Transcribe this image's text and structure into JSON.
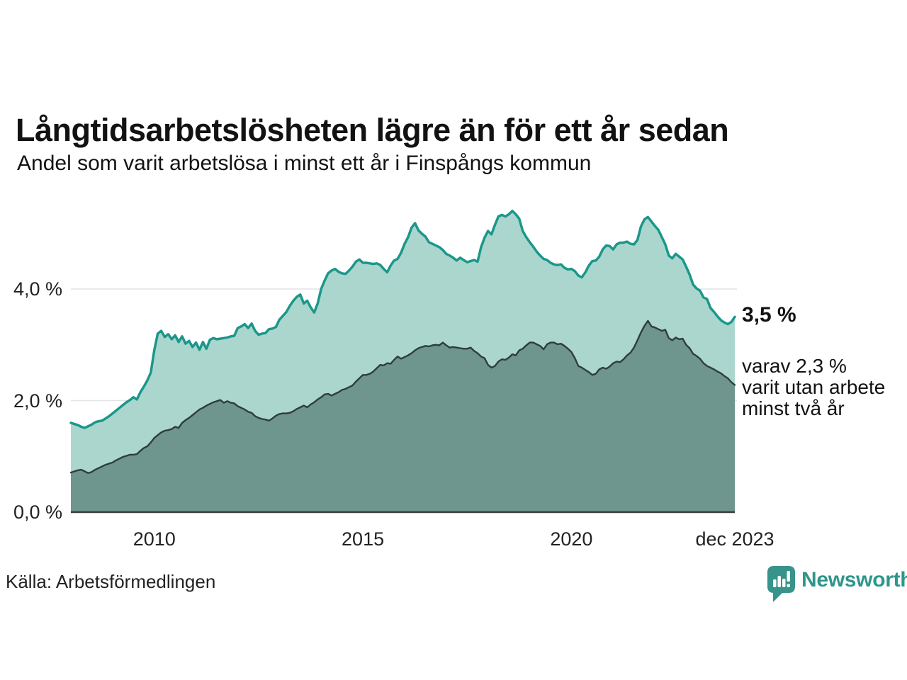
{
  "header": {
    "title": "Långtidsarbetslösheten lägre än för ett år sedan",
    "subtitle": "Andel som varit arbetslösa i minst ett år i Finspångs kommun"
  },
  "annotations": {
    "end_value": "3,5 %",
    "secondary": [
      "varav 2,3 %",
      "varit utan arbete",
      "minst två år"
    ]
  },
  "source": "Källa: Arbetsförmedlingen",
  "logo": {
    "text": "Newsworthy",
    "icon": "newsworthy-speech-bubble-bars-icon"
  },
  "colors": {
    "line_total": "#1b978a",
    "fill_total": "#aad6ce",
    "line_two_years": "#2f3e3a",
    "fill_two_years": "#6f968e",
    "grid": "#e4e4e8",
    "baseline": "#3a3a3a",
    "brand_teal": "#37948a",
    "brand_text": "#2e968c"
  },
  "chart_data": {
    "type": "area",
    "title": "Långtidsarbetslösheten lägre än för ett år sedan",
    "subtitle": "Andel som varit arbetslösa i minst ett år i Finspångs kommun",
    "unit": "%",
    "x_start": 2008.0,
    "x_end": 2023.9167,
    "points_per_series": 192,
    "frequency": "monthly",
    "ylim": [
      0,
      5.6
    ],
    "grid": "horizontal",
    "legend_position": "none",
    "x_ticks": [
      {
        "label": "2010",
        "year": 2010
      },
      {
        "label": "2015",
        "year": 2015
      },
      {
        "label": "2020",
        "year": 2020
      },
      {
        "label": "dec 2023",
        "year": 2023.9167
      }
    ],
    "y_ticks": [
      {
        "label": "0,0 %",
        "value": 0
      },
      {
        "label": "2,0 %",
        "value": 2
      },
      {
        "label": "4,0 %",
        "value": 4
      }
    ],
    "end_labels": {
      "total": "3,5 %",
      "two_years": "2,3 %"
    },
    "series": [
      {
        "name": "Arbetslösa minst ett år",
        "end_value": 3.5,
        "values": [
          1.6,
          1.58,
          1.56,
          1.53,
          1.51,
          1.54,
          1.57,
          1.61,
          1.63,
          1.64,
          1.68,
          1.72,
          1.77,
          1.82,
          1.87,
          1.92,
          1.97,
          2.01,
          2.06,
          2.02,
          2.15,
          2.25,
          2.36,
          2.5,
          2.9,
          3.2,
          3.25,
          3.14,
          3.19,
          3.1,
          3.17,
          3.05,
          3.15,
          3.02,
          3.07,
          2.96,
          3.04,
          2.91,
          3.05,
          2.93,
          3.09,
          3.12,
          3.1,
          3.11,
          3.12,
          3.13,
          3.15,
          3.16,
          3.3,
          3.33,
          3.37,
          3.3,
          3.38,
          3.25,
          3.18,
          3.2,
          3.21,
          3.28,
          3.29,
          3.32,
          3.45,
          3.52,
          3.59,
          3.7,
          3.79,
          3.86,
          3.9,
          3.74,
          3.79,
          3.67,
          3.58,
          3.74,
          4.0,
          4.15,
          4.28,
          4.33,
          4.36,
          4.31,
          4.28,
          4.27,
          4.33,
          4.4,
          4.49,
          4.53,
          4.47,
          4.47,
          4.46,
          4.45,
          4.46,
          4.43,
          4.36,
          4.3,
          4.42,
          4.51,
          4.54,
          4.65,
          4.81,
          4.93,
          5.1,
          5.18,
          5.05,
          4.99,
          4.94,
          4.84,
          4.81,
          4.78,
          4.75,
          4.7,
          4.63,
          4.6,
          4.56,
          4.51,
          4.56,
          4.52,
          4.48,
          4.5,
          4.52,
          4.49,
          4.75,
          4.92,
          5.04,
          4.98,
          5.15,
          5.3,
          5.33,
          5.3,
          5.34,
          5.4,
          5.34,
          5.26,
          5.04,
          4.93,
          4.84,
          4.76,
          4.67,
          4.6,
          4.54,
          4.52,
          4.47,
          4.44,
          4.43,
          4.44,
          4.38,
          4.35,
          4.36,
          4.32,
          4.24,
          4.21,
          4.3,
          4.42,
          4.5,
          4.51,
          4.58,
          4.71,
          4.78,
          4.77,
          4.71,
          4.8,
          4.83,
          4.83,
          4.85,
          4.81,
          4.8,
          4.88,
          5.12,
          5.25,
          5.29,
          5.21,
          5.13,
          5.06,
          4.93,
          4.8,
          4.6,
          4.55,
          4.63,
          4.58,
          4.53,
          4.4,
          4.26,
          4.08,
          4.01,
          3.97,
          3.85,
          3.82,
          3.66,
          3.59,
          3.51,
          3.44,
          3.4,
          3.37,
          3.41,
          3.5
        ]
      },
      {
        "name": "Arbetslösa minst två år",
        "end_value": 2.3,
        "values": [
          0.71,
          0.73,
          0.75,
          0.76,
          0.73,
          0.7,
          0.72,
          0.76,
          0.79,
          0.82,
          0.85,
          0.87,
          0.89,
          0.93,
          0.96,
          0.99,
          1.01,
          1.03,
          1.03,
          1.04,
          1.1,
          1.15,
          1.18,
          1.25,
          1.33,
          1.38,
          1.43,
          1.46,
          1.47,
          1.49,
          1.53,
          1.51,
          1.6,
          1.65,
          1.69,
          1.74,
          1.79,
          1.84,
          1.87,
          1.91,
          1.94,
          1.97,
          1.99,
          2.01,
          1.96,
          1.99,
          1.96,
          1.95,
          1.9,
          1.87,
          1.84,
          1.8,
          1.78,
          1.72,
          1.69,
          1.67,
          1.66,
          1.64,
          1.68,
          1.73,
          1.76,
          1.77,
          1.77,
          1.78,
          1.81,
          1.85,
          1.88,
          1.91,
          1.88,
          1.93,
          1.97,
          2.02,
          2.06,
          2.11,
          2.12,
          2.09,
          2.12,
          2.15,
          2.19,
          2.21,
          2.24,
          2.27,
          2.34,
          2.4,
          2.46,
          2.46,
          2.48,
          2.52,
          2.58,
          2.64,
          2.63,
          2.67,
          2.66,
          2.73,
          2.79,
          2.75,
          2.78,
          2.81,
          2.85,
          2.9,
          2.94,
          2.96,
          2.98,
          2.97,
          2.99,
          3.0,
          2.99,
          3.04,
          2.99,
          2.95,
          2.96,
          2.95,
          2.94,
          2.93,
          2.93,
          2.95,
          2.89,
          2.85,
          2.79,
          2.76,
          2.64,
          2.59,
          2.62,
          2.7,
          2.74,
          2.73,
          2.77,
          2.83,
          2.81,
          2.9,
          2.93,
          2.99,
          3.04,
          3.04,
          3.01,
          2.98,
          2.92,
          3.01,
          3.04,
          3.04,
          3.01,
          3.02,
          2.98,
          2.93,
          2.87,
          2.76,
          2.62,
          2.59,
          2.55,
          2.51,
          2.46,
          2.48,
          2.56,
          2.59,
          2.57,
          2.61,
          2.67,
          2.7,
          2.69,
          2.74,
          2.81,
          2.86,
          2.95,
          3.08,
          3.22,
          3.34,
          3.43,
          3.33,
          3.31,
          3.28,
          3.25,
          3.27,
          3.12,
          3.08,
          3.13,
          3.1,
          3.11,
          3.0,
          2.94,
          2.84,
          2.8,
          2.75,
          2.67,
          2.62,
          2.59,
          2.56,
          2.52,
          2.49,
          2.44,
          2.4,
          2.33,
          2.28
        ]
      }
    ]
  }
}
